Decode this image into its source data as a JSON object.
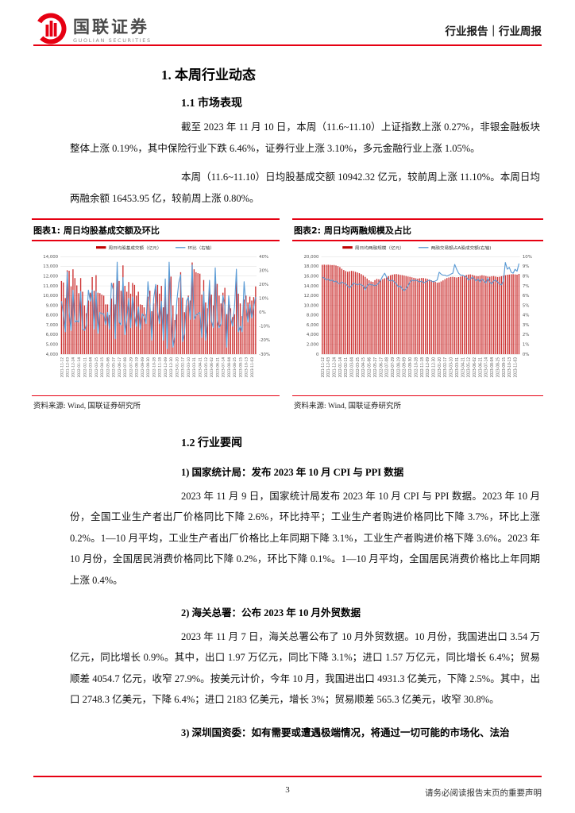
{
  "header": {
    "brand_cn": "国联证券",
    "brand_en": "GUOLIAN SECURITIES",
    "doc_type": "行业报告｜行业周报"
  },
  "colors": {
    "accent_red": "#e60012",
    "bar_red": "#c00000",
    "line_blue": "#5b9bd5"
  },
  "sections": {
    "h1": "1. 本周行业动态",
    "h11": "1.1 市场表现",
    "p1": "截至 2023 年 11 月 10 日，本周（11.6~11.10）上证指数上涨 0.27%，非银金融板块整体上涨 0.19%，其中保险行业下跌 6.46%，证券行业上涨 3.10%，多元金融行业上涨 1.05%。",
    "p2": "本周（11.6~11.10）日均股基成交额 10942.32 亿元，较前周上涨 11.10%。本周日均两融余额 16453.95 亿，较前周上涨 0.80%。",
    "h12": "1.2 行业要闻",
    "items": [
      {
        "heading": "1) 国家统计局：发布 2023 年 10 月 CPI 与 PPI 数据",
        "body": "2023 年 11 月 9 日，国家统计局发布 2023 年 10 月 CPI 与 PPI 数据。2023 年 10 月份，全国工业生产者出厂价格同比下降 2.6%，环比持平；工业生产者购进价格同比下降 3.7%，环比上涨 0.2%。1—10 月平均，工业生产者出厂价格比上年同期下降 3.1%，工业生产者购进价格下降 3.6%。2023 年 10 月份，全国居民消费价格同比下降 0.2%，环比下降 0.1%。1—10 月平均，全国居民消费价格比上年同期上涨 0.4%。"
      },
      {
        "heading": "2) 海关总署：公布 2023 年 10 月外贸数据",
        "body": "2023 年 11 月 7 日，海关总署公布了 10 月外贸数据。10 月份，我国进出口 3.54 万亿元，同比增长 0.9%。其中，出口 1.97 万亿元，同比下降 3.1%；进口 1.57 万亿元，同比增长 6.4%；贸易顺差 4054.7 亿元，收窄 27.9%。按美元计价，今年 10 月，我国进出口 4931.3 亿美元，下降 2.5%。其中，出口 2748.3 亿美元，下降 6.4%；进口 2183 亿美元，增长 3%；贸易顺差 565.3 亿美元，收窄 30.8%。"
      },
      {
        "heading": "3) 深圳国资委：如有需要或遭遇极端情况，将通过一切可能的市场化、法治"
      }
    ]
  },
  "footer": {
    "page": "3",
    "disclaimer": "请务必阅读报告末页的重要声明"
  },
  "chart_data": [
    {
      "type": "bar",
      "title": "图表1: 周日均股基成交额及环比",
      "source": "资料来源: Wind, 国联证券研究所",
      "legend_position": "top",
      "grid": true,
      "x_labels": [
        "2021-11-12",
        "2021-12-03",
        "2021-12-24",
        "2022-01-14",
        "2022-02-11",
        "2022-03-04",
        "2022-03-25",
        "2022-04-15",
        "2022-05-06",
        "2022-05-27",
        "2022-06-17",
        "2022-07-08",
        "2022-07-29",
        "2022-08-19",
        "2022-09-09",
        "2022-09-30",
        "2022-10-28",
        "2022-11-18",
        "2022-12-09",
        "2022-12-30",
        "2023-01-20",
        "2023-02-17",
        "2023-03-10",
        "2023-03-31",
        "2023-04-21",
        "2023-05-12",
        "2023-06-02",
        "2023-06-21",
        "2023-07-14",
        "2023-08-04",
        "2023-08-25",
        "2023-09-15",
        "2023-10-13",
        "2023-11-03"
      ],
      "label_every": 3,
      "left_axis": {
        "min": 4000,
        "max": 14000,
        "step": 1000,
        "format": "thousands"
      },
      "right_axis": {
        "min": -30,
        "max": 40,
        "step": 10,
        "format": "percent"
      },
      "series": [
        {
          "name": "周日均股基成交额（亿元）",
          "type": "bar",
          "axis": "left",
          "color": "#c00000",
          "values": [
            11500,
            11350,
            9750,
            12600,
            12550,
            10950,
            12700,
            11800,
            11050,
            10250,
            11800,
            10400,
            9000,
            8200,
            9500,
            10300,
            11900,
            10500,
            12100,
            10300,
            10250,
            10100,
            10000,
            9100,
            9100,
            8000,
            9700,
            11300,
            9100,
            12400,
            11500,
            10500,
            13100,
            11000,
            10400,
            11400,
            10200,
            11300,
            11100,
            10000,
            10400,
            9100,
            9050,
            8800,
            8100,
            9900,
            10500,
            8400,
            9200,
            11000,
            11100,
            10200,
            11000,
            8800,
            10900,
            8100,
            12000,
            11950,
            9000,
            7500,
            8100,
            9800,
            12400,
            9800,
            8300,
            9000,
            10000,
            9500,
            13400,
            12700,
            12400,
            12300,
            12250,
            10100,
            11600,
            9300,
            8700,
            10700,
            10100,
            9000,
            11900,
            11200,
            10000,
            9200,
            10300,
            10800,
            8100,
            9100,
            8700,
            7800,
            8100,
            11800,
            10200,
            9200,
            7900,
            9600,
            10000,
            9300,
            9900,
            9500,
            9850,
            10942
          ]
        },
        {
          "name": "环比（右轴）",
          "type": "line",
          "axis": "right",
          "color": "#5b9bd5",
          "values": [
            8,
            -1,
            -14,
            29,
            0,
            -13,
            16,
            -7,
            -6,
            -7,
            15,
            -12,
            -13,
            -9,
            16,
            8,
            16,
            -12,
            15,
            -15,
            0,
            -1,
            -1,
            -9,
            0,
            -12,
            21,
            16,
            -19,
            36,
            -7,
            -9,
            25,
            -16,
            -5,
            10,
            -11,
            11,
            -2,
            -10,
            4,
            -12,
            -1,
            -3,
            -8,
            22,
            6,
            -20,
            10,
            20,
            1,
            -8,
            8,
            -20,
            24,
            -26,
            36,
            0,
            -25,
            -17,
            8,
            21,
            27,
            -21,
            -15,
            8,
            11,
            -5,
            34,
            -5,
            -2,
            -1,
            0,
            -18,
            15,
            -20,
            -6,
            23,
            -6,
            -11,
            32,
            -6,
            -11,
            -8,
            12,
            5,
            -25,
            12,
            -4,
            -10,
            4,
            31,
            -14,
            -10,
            -14,
            22,
            4,
            -7,
            6,
            -4,
            4,
            11.1
          ]
        }
      ]
    },
    {
      "type": "bar",
      "title": "图表2: 周日均两融规模及占比",
      "source": "资料来源: Wind, 国联证券研究所",
      "legend_position": "top",
      "grid": true,
      "x_labels": [
        "2021-11-12",
        "2021-12-03",
        "2021-12-24",
        "2022-01-14",
        "2022-02-11",
        "2022-03-04",
        "2022-03-25",
        "2022-04-15",
        "2022-05-06",
        "2022-05-27",
        "2022-06-17",
        "2022-07-08",
        "2022-07-29",
        "2022-08-19",
        "2022-09-09",
        "2022-09-30",
        "2022-10-28",
        "2022-11-18",
        "2022-12-09",
        "2022-12-30",
        "2023-01-20",
        "2023-02-17",
        "2023-03-10",
        "2023-03-31",
        "2023-04-21",
        "2023-05-12",
        "2023-06-02",
        "2023-06-21",
        "2023-07-14",
        "2023-08-04",
        "2023-08-25",
        "2023-09-15",
        "2023-10-13",
        "2023-11-03"
      ],
      "label_every": 3,
      "left_axis": {
        "min": 0,
        "max": 20000,
        "step": 2000,
        "format": "thousands"
      },
      "right_axis": {
        "min": 0,
        "max": 10,
        "step": 1,
        "format": "percent"
      },
      "series": [
        {
          "name": "周日均两融规模（亿元）",
          "type": "bar",
          "axis": "left",
          "color": "#c00000",
          "values": [
            18320,
            18350,
            18310,
            18340,
            18300,
            18260,
            18280,
            18180,
            18050,
            17850,
            17500,
            17250,
            17050,
            16900,
            16980,
            17080,
            17020,
            16880,
            16750,
            16600,
            16400,
            16150,
            15850,
            15500,
            15150,
            14900,
            14820,
            15180,
            15420,
            15350,
            15280,
            15380,
            15550,
            15750,
            16000,
            16180,
            16300,
            16380,
            16420,
            16350,
            16250,
            16200,
            16120,
            16020,
            15920,
            15850,
            15750,
            15650,
            15550,
            15480,
            15550,
            15620,
            15600,
            15520,
            15400,
            15280,
            15150,
            15000,
            14820,
            14650,
            14720,
            14900,
            15120,
            15380,
            15600,
            15720,
            15820,
            15850,
            15780,
            15720,
            15800,
            15900,
            16020,
            16120,
            16220,
            16320,
            16350,
            16250,
            16120,
            16020,
            15980,
            16080,
            16180,
            16120,
            16020,
            15920,
            15880,
            15980,
            16020,
            15920,
            15820,
            15880,
            15980,
            16080,
            16180,
            16280,
            16320,
            16380,
            16400,
            16350,
            16300,
            16454
          ]
        },
        {
          "name": "两融交易额占A股成交额(右轴)",
          "type": "line",
          "axis": "right",
          "color": "#5b9bd5",
          "values": [
            7.9,
            7.8,
            7.6,
            7.7,
            7.5,
            7.6,
            7.4,
            7.5,
            7.3,
            7.2,
            7.4,
            7.3,
            7.2,
            7.0,
            6.8,
            7.0,
            7.3,
            7.2,
            7.1,
            7.2,
            7.1,
            7.0,
            6.6,
            7.0,
            7.2,
            7.1,
            7.1,
            7.0,
            7.1,
            7.3,
            7.6,
            8.0,
            8.3,
            7.9,
            7.6,
            7.5,
            7.6,
            7.4,
            7.2,
            6.9,
            7.0,
            6.7,
            6.5,
            6.7,
            7.0,
            7.4,
            7.6,
            7.5,
            7.6,
            7.5,
            7.4,
            7.5,
            7.3,
            7.4,
            7.5,
            7.6,
            7.5,
            7.4,
            7.5,
            7.6,
            8.4,
            8.2,
            8.1,
            8.1,
            8.0,
            8.1,
            8.2,
            8.3,
            9.2,
            8.7,
            8.3,
            8.1,
            8.1,
            8.0,
            7.9,
            7.6,
            7.7,
            7.9,
            7.7,
            7.5,
            7.7,
            7.4,
            7.7,
            7.5,
            7.3,
            7.8,
            7.4,
            7.2,
            7.5,
            7.6,
            7.4,
            7.2,
            7.1,
            7.5,
            9.4,
            8.7,
            8.9,
            8.4,
            8.3,
            8.7,
            8.5,
            9.3
          ]
        }
      ]
    }
  ]
}
